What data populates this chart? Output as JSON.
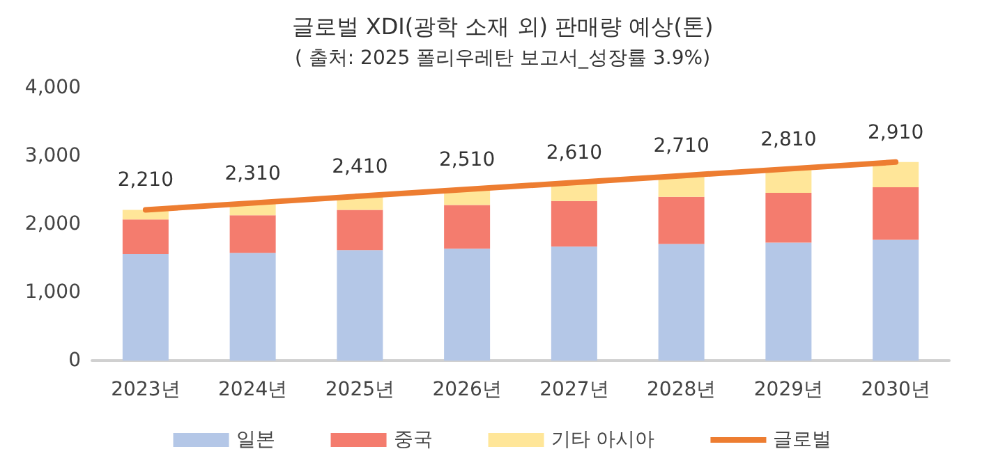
{
  "chart_data": {
    "type": "bar",
    "title": "글로벌 XDI(광학 소재 외) 판매량 예상(톤)",
    "subtitle": "( 출처: 2025 폴리우레탄 보고서_성장률 3.9%)",
    "categories": [
      "2023년",
      "2024년",
      "2025년",
      "2026년",
      "2027년",
      "2028년",
      "2029년",
      "2030년"
    ],
    "stacked": true,
    "series": [
      {
        "name": "일본",
        "color": "#b4c7e7",
        "values": [
          1560,
          1580,
          1620,
          1640,
          1670,
          1710,
          1730,
          1770
        ]
      },
      {
        "name": "중국",
        "color": "#f47c6e",
        "values": [
          510,
          550,
          590,
          640,
          670,
          690,
          730,
          770
        ]
      },
      {
        "name": "기타 아시아",
        "color": "#ffe699",
        "values": [
          140,
          180,
          200,
          230,
          270,
          310,
          350,
          370
        ]
      },
      {
        "name": "글로벌",
        "type": "line",
        "color": "#ed7d31",
        "marker": "none",
        "values": [
          2210,
          2310,
          2410,
          2510,
          2610,
          2710,
          2810,
          2910
        ],
        "value_labels": [
          "2,210",
          "2,310",
          "2,410",
          "2,510",
          "2,610",
          "2,710",
          "2,810",
          "2,910"
        ]
      }
    ],
    "ylim": [
      0,
      4000
    ],
    "yticks": [
      0,
      {
        "value": 1000,
        "label": "1,000"
      },
      {
        "value": 2000,
        "label": "2,000"
      },
      {
        "value": 3000,
        "label": "3,000"
      },
      {
        "value": 4000,
        "label": "4,000"
      }
    ],
    "grid": false,
    "legend": "bottom"
  }
}
